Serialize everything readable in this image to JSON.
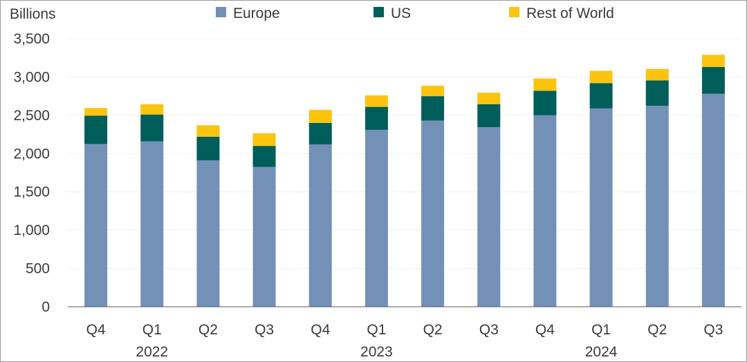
{
  "chart_data": {
    "type": "bar",
    "stacked": true,
    "unit_label": "Billions",
    "categories": [
      "Q4",
      "Q1",
      "Q2",
      "Q3",
      "Q4",
      "Q1",
      "Q2",
      "Q3",
      "Q4",
      "Q1",
      "Q2",
      "Q3"
    ],
    "year_labels": [
      {
        "label": "2022",
        "category_index": 1
      },
      {
        "label": "2023",
        "category_index": 5
      },
      {
        "label": "2024",
        "category_index": 9
      }
    ],
    "series": [
      {
        "name": "Europe",
        "color": "#7391b6",
        "values": [
          2125,
          2160,
          1910,
          1825,
          2120,
          2310,
          2430,
          2345,
          2500,
          2590,
          2625,
          2780
        ]
      },
      {
        "name": "US",
        "color": "#005e5a",
        "values": [
          370,
          350,
          310,
          275,
          280,
          300,
          320,
          300,
          320,
          330,
          330,
          350
        ]
      },
      {
        "name": "Rest of World",
        "color": "#fcc40f",
        "values": [
          100,
          135,
          150,
          165,
          170,
          150,
          135,
          150,
          160,
          160,
          150,
          160
        ]
      }
    ],
    "ylim": [
      0,
      3500
    ],
    "yticks": [
      0,
      500,
      1000,
      1500,
      2000,
      2500,
      3000,
      3500
    ],
    "ytick_labels": [
      "0",
      "500",
      "1,000",
      "1,500",
      "2,000",
      "2,500",
      "3,000",
      "3,500"
    ],
    "grid": true,
    "legend_position": "top"
  }
}
